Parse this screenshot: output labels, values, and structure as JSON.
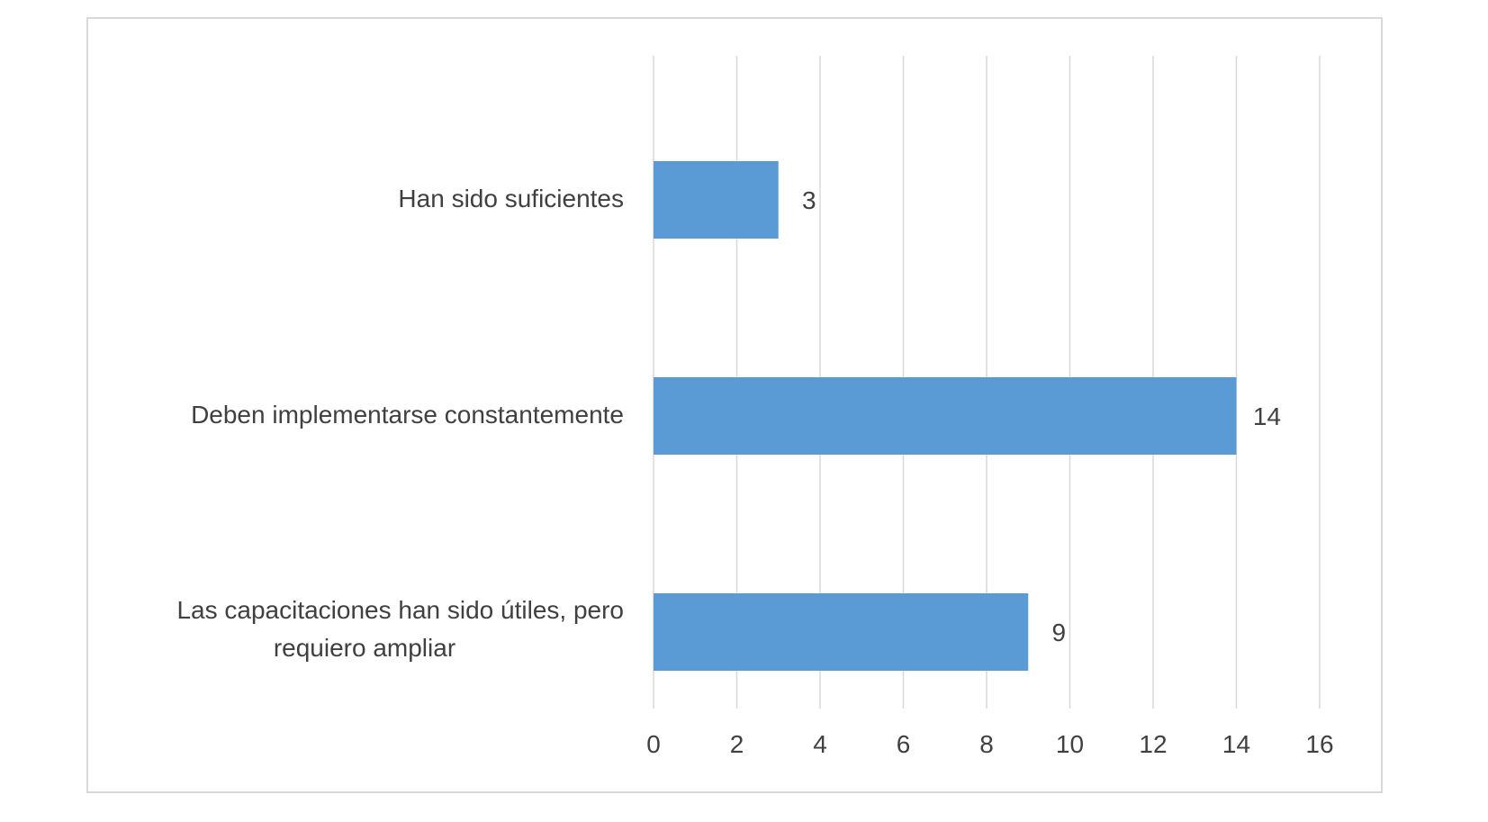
{
  "chart_data": {
    "type": "bar",
    "orientation": "horizontal",
    "categories": [
      "Han sido suficientes",
      "Deben implementarse constantemente",
      "Las capacitaciones han sido útiles, pero requiero ampliar"
    ],
    "category_lines": [
      [
        "Han sido suficientes"
      ],
      [
        "Deben implementarse constantemente"
      ],
      [
        "Las capacitaciones han sido útiles, pero",
        "requiero ampliar"
      ]
    ],
    "values": [
      3,
      14,
      9
    ],
    "data_labels": [
      "3",
      "14",
      "9"
    ],
    "xlim": [
      0,
      16
    ],
    "x_ticks": [
      "0",
      "2",
      "4",
      "6",
      "8",
      "10",
      "12",
      "14",
      "16"
    ],
    "title": "",
    "xlabel": "",
    "ylabel": "",
    "grid": "vertical",
    "legend": "none",
    "bar_color": "#5b9bd5",
    "grid_color": "#d9d9d9",
    "text_color": "#404040"
  }
}
